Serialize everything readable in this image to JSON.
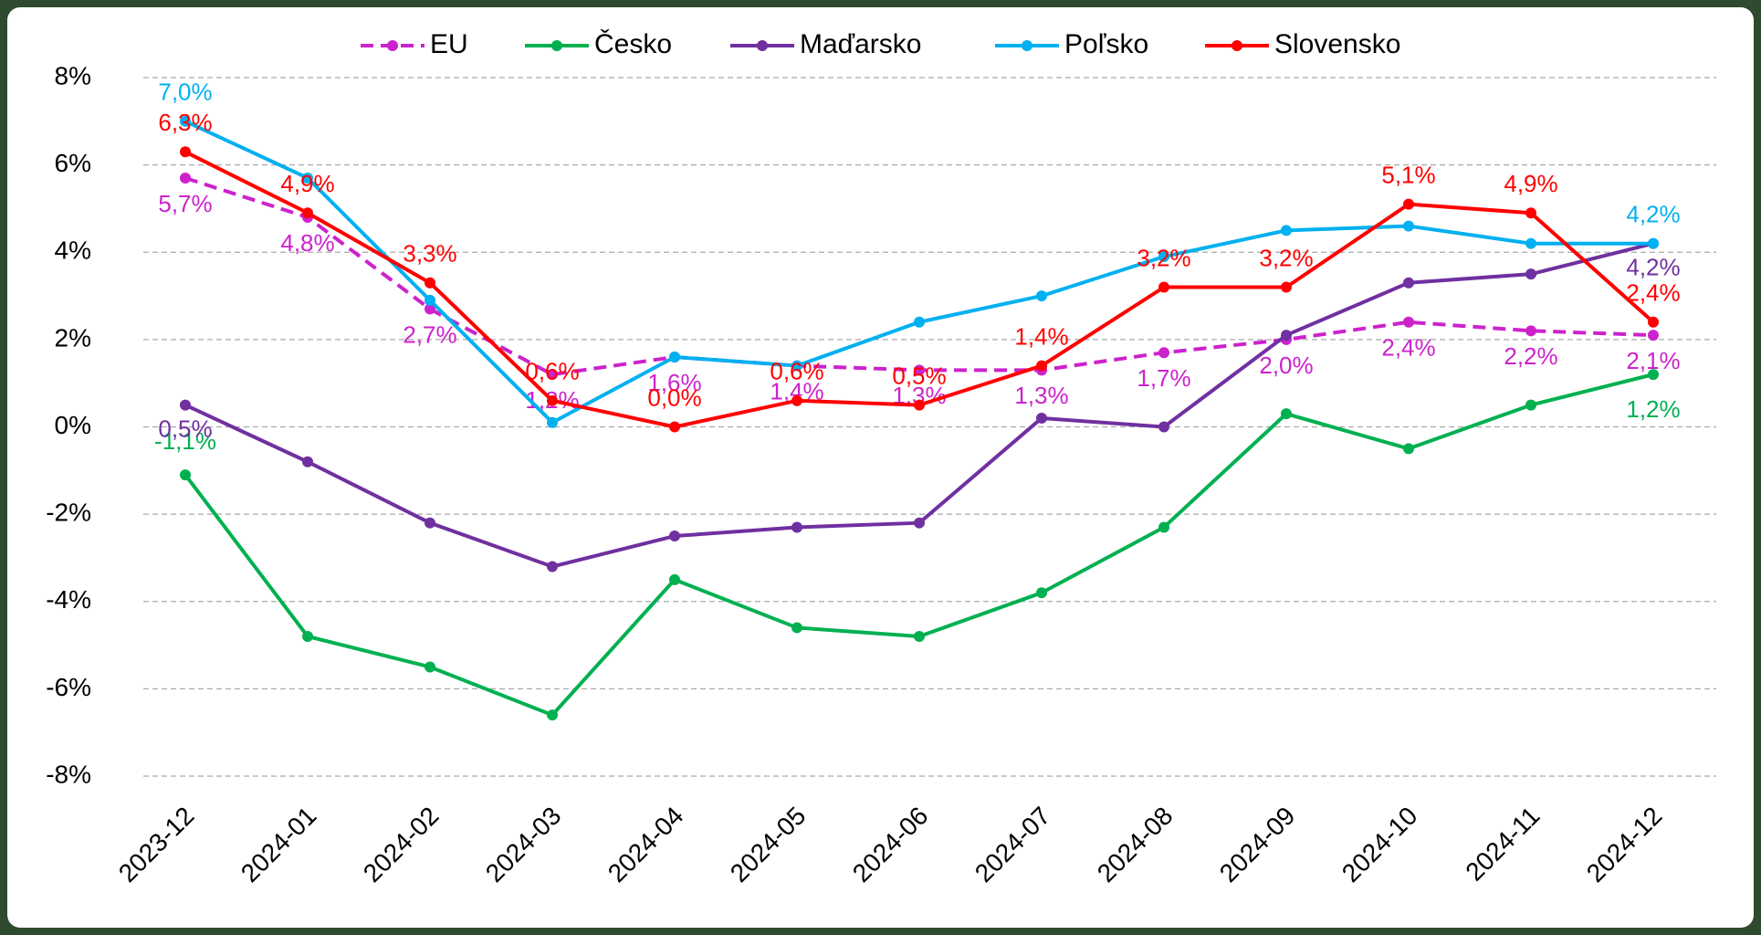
{
  "chart_data": {
    "type": "line",
    "categories": [
      "2023-12",
      "2024-01",
      "2024-02",
      "2024-03",
      "2024-04",
      "2024-05",
      "2024-06",
      "2024-07",
      "2024-08",
      "2024-09",
      "2024-10",
      "2024-11",
      "2024-12"
    ],
    "series": [
      {
        "name": "EU",
        "color": "#cc22cc",
        "line_style": "dashed",
        "values": [
          5.7,
          4.8,
          2.7,
          1.2,
          1.6,
          1.4,
          1.3,
          1.3,
          1.7,
          2.0,
          2.4,
          2.2,
          2.1
        ],
        "value_labels": [
          "5,7%",
          "4,8%",
          "2,7%",
          "1,2%",
          "1,6%",
          "1,4%",
          "1,3%",
          "1,3%",
          "1,7%",
          "2,0%",
          "2,4%",
          "2,2%",
          "2,1%"
        ]
      },
      {
        "name": "Česko",
        "color": "#00b050",
        "values": [
          -1.1,
          -4.8,
          -5.5,
          -6.6,
          -3.5,
          -4.6,
          -4.8,
          -3.8,
          -2.3,
          0.3,
          -0.5,
          0.5,
          1.2
        ],
        "value_labels": [
          "-1,1%",
          null,
          null,
          null,
          null,
          null,
          null,
          null,
          null,
          null,
          null,
          null,
          "1,2%"
        ]
      },
      {
        "name": "Maďarsko",
        "color": "#7030a0",
        "values": [
          0.5,
          -0.8,
          -2.2,
          -3.2,
          -2.5,
          -2.3,
          -2.2,
          0.2,
          0.0,
          2.1,
          3.3,
          3.5,
          4.2
        ],
        "value_labels": [
          "0,5%",
          null,
          null,
          null,
          null,
          null,
          null,
          null,
          null,
          null,
          null,
          null,
          "4,2%"
        ]
      },
      {
        "name": "Poľsko",
        "color": "#00b0f0",
        "values": [
          7.0,
          5.7,
          2.9,
          0.1,
          1.6,
          1.4,
          2.4,
          3.0,
          3.9,
          4.5,
          4.6,
          4.2,
          4.2
        ],
        "value_labels": [
          "7,0%",
          null,
          null,
          null,
          null,
          null,
          null,
          null,
          null,
          null,
          null,
          null,
          "4,2%"
        ]
      },
      {
        "name": "Slovensko",
        "color": "#ff0000",
        "values": [
          6.3,
          4.9,
          3.3,
          0.6,
          0.0,
          0.6,
          0.5,
          1.4,
          3.2,
          3.2,
          5.1,
          4.9,
          2.4
        ],
        "value_labels": [
          "6,3%",
          "4,9%",
          "3,3%",
          "0,6%",
          "0,0%",
          "0,6%",
          "0,5%",
          "1,4%",
          "3,2%",
          "3,2%",
          "5,1%",
          "4,9%",
          "2,4%"
        ]
      }
    ],
    "ylim": [
      -8,
      8
    ],
    "yticks": [
      {
        "value": -8,
        "label": "-8%"
      },
      {
        "value": -6,
        "label": "-6%"
      },
      {
        "value": -4,
        "label": "-4%"
      },
      {
        "value": -2,
        "label": "-2%"
      },
      {
        "value": 0,
        "label": "0%"
      },
      {
        "value": 2,
        "label": "2%"
      },
      {
        "value": 4,
        "label": "4%"
      },
      {
        "value": 6,
        "label": "6%"
      },
      {
        "value": 8,
        "label": "8%"
      }
    ],
    "grid": true,
    "legend": "top"
  }
}
